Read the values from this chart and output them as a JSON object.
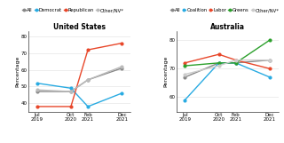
{
  "us_title": "United States",
  "au_title": "Australia",
  "x_positions": [
    0,
    2,
    3,
    5
  ],
  "x_tick_pos_us": [
    0,
    2,
    3,
    5
  ],
  "x_tick_labels_us": [
    "Jul\n2019",
    "Oct\n2020",
    "Feb\n2021",
    "Dec\n2021"
  ],
  "x_tick_pos_au": [
    0,
    2,
    3,
    5
  ],
  "x_tick_labels_au": [
    "Jul\n2019",
    "Oct\n2020",
    "Feb\n2021",
    "Dec\n2021"
  ],
  "us_series": {
    "All": {
      "values": [
        47,
        47,
        54,
        61
      ],
      "color": "#888888"
    },
    "Democrat": {
      "values": [
        52,
        49,
        38,
        46
      ],
      "color": "#29abe2"
    },
    "Republican": {
      "values": [
        38,
        38,
        72,
        76
      ],
      "color": "#e8472a"
    },
    "Other/NV*": {
      "values": [
        48,
        47,
        54,
        62
      ],
      "color": "#bbbbbb"
    }
  },
  "au_series": {
    "All": {
      "values": [
        67,
        72,
        72,
        73
      ],
      "color": "#888888"
    },
    "Coalition": {
      "values": [
        59,
        72,
        72,
        67
      ],
      "color": "#29abe2"
    },
    "Labor": {
      "values": [
        72,
        75,
        73,
        70
      ],
      "color": "#e8472a"
    },
    "Greens": {
      "values": [
        71,
        72,
        72,
        80
      ],
      "color": "#2ca02c"
    },
    "Other/NV*": {
      "values": [
        68,
        71,
        73,
        73
      ],
      "color": "#cccccc"
    }
  },
  "us_ylim": [
    35,
    83
  ],
  "au_ylim": [
    55,
    83
  ],
  "us_yticks": [
    40,
    50,
    60,
    70,
    80
  ],
  "au_yticks": [
    60,
    70,
    80
  ],
  "ylabel": "Percentage",
  "title_fontsize": 5.5,
  "legend_fontsize": 3.8,
  "axis_label_fontsize": 4.5,
  "tick_fontsize": 4.0,
  "linewidth": 1.0,
  "markersize": 2.0,
  "bg_color": "#ffffff"
}
